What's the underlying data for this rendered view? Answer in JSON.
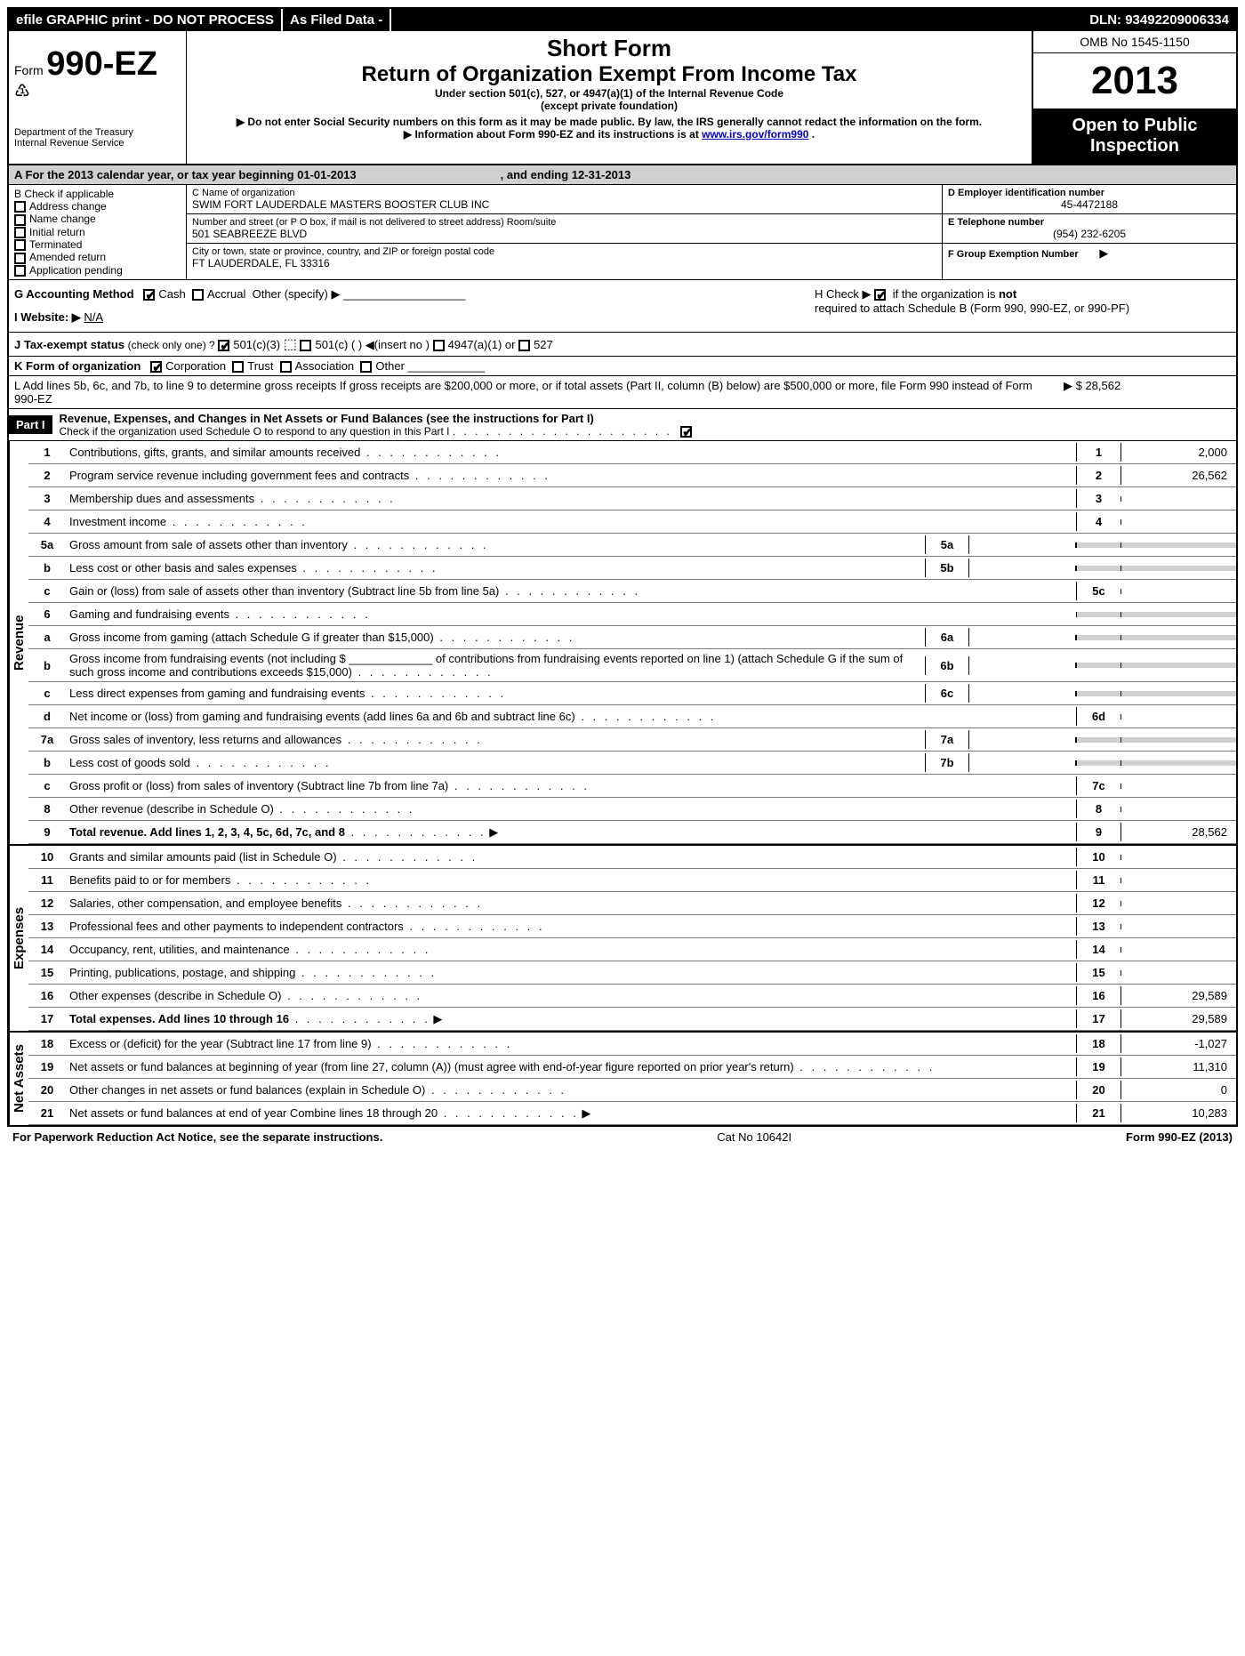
{
  "topbar": {
    "efile": "efile GRAPHIC print - DO NOT PROCESS",
    "asfiled": "As Filed Data -",
    "dln": "DLN: 93492209006334"
  },
  "header": {
    "form_prefix": "Form",
    "form_num": "990-EZ",
    "short": "Short Form",
    "title": "Return of Organization Exempt From Income Tax",
    "sub1": "Under section 501(c), 527, or 4947(a)(1) of the Internal Revenue Code",
    "sub2": "(except private foundation)",
    "warn1": "▶ Do not enter Social Security numbers on this form as it may be made public. By law, the IRS generally cannot redact the information on the form.",
    "warn2_pre": "▶  Information about Form 990-EZ and its instructions is at ",
    "warn2_link": "www.irs.gov/form990",
    "warn2_post": ".",
    "dept": "Department of the Treasury",
    "irs": "Internal Revenue Service",
    "omb": "OMB No  1545-1150",
    "year": "2013",
    "open": "Open to Public Inspection"
  },
  "A": {
    "pre": "A  For the 2013 calendar year, or tax year beginning 01-01-2013",
    "end": ", and ending 12-31-2013"
  },
  "B": {
    "title": "B  Check if applicable",
    "items": [
      "Address change",
      "Name change",
      "Initial return",
      "Terminated",
      "Amended return",
      "Application pending"
    ]
  },
  "C": {
    "label": "C Name of organization",
    "name": "SWIM FORT LAUDERDALE MASTERS BOOSTER CLUB INC",
    "addr_label": "Number and street (or P  O  box, if mail is not delivered to street address) Room/suite",
    "addr": "501 SEABREEZE BLVD",
    "city_label": "City or town, state or province, country, and ZIP or foreign postal code",
    "city": "FT LAUDERDALE, FL  33316"
  },
  "D": {
    "label": "D Employer identification number",
    "val": "45-4472188"
  },
  "E": {
    "label": "E Telephone number",
    "val": "(954) 232-6205"
  },
  "F": {
    "label": "F Group Exemption Number",
    "arrow": "▶"
  },
  "G": {
    "label": "G Accounting Method",
    "cash": "Cash",
    "accrual": "Accrual",
    "other": "Other (specify) ▶"
  },
  "H": {
    "text": "H  Check ▶",
    "rest": "if the organization is",
    "not": "not",
    "rest2": "required to attach Schedule B (Form 990, 990-EZ, or 990-PF)"
  },
  "I": {
    "label": "I Website: ▶",
    "val": "N/A"
  },
  "J": {
    "label": "J Tax-exempt status",
    "rest": "(check only one) ?",
    "c3": "501(c)(3)",
    "c": "501(c) (   ) ◀(insert no )",
    "a": "4947(a)(1) or",
    "s527": "527"
  },
  "K": {
    "label": "K Form of organization",
    "corp": "Corporation",
    "trust": "Trust",
    "assoc": "Association",
    "other": "Other"
  },
  "L": {
    "text": "L Add lines 5b, 6c, and 7b, to line 9 to determine gross receipts  If gross receipts are $200,000 or more, or if total assets (Part II, column (B) below) are $500,000 or more, file Form 990 instead of Form 990-EZ",
    "amt": "▶ $ 28,562"
  },
  "part1": {
    "hdr": "Part I",
    "title": "Revenue, Expenses, and Changes in Net Assets or Fund Balances (see the instructions for Part I)",
    "check": "Check if the organization used Schedule O to respond to any question in this Part I"
  },
  "revenue_label": "Revenue",
  "expenses_label": "Expenses",
  "netassets_label": "Net Assets",
  "lines": {
    "l1": {
      "n": "1",
      "d": "Contributions, gifts, grants, and similar amounts received",
      "box": "1",
      "v": "2,000"
    },
    "l2": {
      "n": "2",
      "d": "Program service revenue including government fees and contracts",
      "box": "2",
      "v": "26,562"
    },
    "l3": {
      "n": "3",
      "d": "Membership dues and assessments",
      "box": "3",
      "v": ""
    },
    "l4": {
      "n": "4",
      "d": "Investment income",
      "box": "4",
      "v": ""
    },
    "l5a": {
      "n": "5a",
      "d": "Gross amount from sale of assets other than inventory",
      "sub": "5a"
    },
    "l5b": {
      "n": "b",
      "d": "Less  cost or other basis and sales expenses",
      "sub": "5b"
    },
    "l5c": {
      "n": "c",
      "d": "Gain or (loss) from sale of assets other than inventory (Subtract line 5b from line 5a)",
      "box": "5c",
      "v": ""
    },
    "l6": {
      "n": "6",
      "d": "Gaming and fundraising events"
    },
    "l6a": {
      "n": "a",
      "d": "Gross income from gaming (attach Schedule G if greater than $15,000)",
      "sub": "6a"
    },
    "l6b": {
      "n": "b",
      "d": "Gross income from fundraising events (not including $ _____________ of contributions from fundraising events reported on line 1) (attach Schedule G if the sum of such gross income and contributions exceeds $15,000)",
      "sub": "6b"
    },
    "l6c": {
      "n": "c",
      "d": "Less  direct expenses from gaming and fundraising events",
      "sub": "6c"
    },
    "l6d": {
      "n": "d",
      "d": "Net income or (loss) from gaming and fundraising events (add lines 6a and 6b and subtract line 6c)",
      "box": "6d",
      "v": ""
    },
    "l7a": {
      "n": "7a",
      "d": "Gross sales of inventory, less returns and allowances",
      "sub": "7a"
    },
    "l7b": {
      "n": "b",
      "d": "Less  cost of goods sold",
      "sub": "7b"
    },
    "l7c": {
      "n": "c",
      "d": "Gross profit or (loss) from sales of inventory (Subtract line 7b from line 7a)",
      "box": "7c",
      "v": ""
    },
    "l8": {
      "n": "8",
      "d": "Other revenue (describe in Schedule O)",
      "box": "8",
      "v": ""
    },
    "l9": {
      "n": "9",
      "d": "Total revenue. Add lines 1, 2, 3, 4, 5c, 6d, 7c, and 8",
      "box": "9",
      "v": "28,562",
      "bold": true,
      "arrow": true
    },
    "l10": {
      "n": "10",
      "d": "Grants and similar amounts paid (list in Schedule O)",
      "box": "10",
      "v": ""
    },
    "l11": {
      "n": "11",
      "d": "Benefits paid to or for members",
      "box": "11",
      "v": ""
    },
    "l12": {
      "n": "12",
      "d": "Salaries, other compensation, and employee benefits",
      "box": "12",
      "v": ""
    },
    "l13": {
      "n": "13",
      "d": "Professional fees and other payments to independent contractors",
      "box": "13",
      "v": ""
    },
    "l14": {
      "n": "14",
      "d": "Occupancy, rent, utilities, and maintenance",
      "box": "14",
      "v": ""
    },
    "l15": {
      "n": "15",
      "d": "Printing, publications, postage, and shipping",
      "box": "15",
      "v": ""
    },
    "l16": {
      "n": "16",
      "d": "Other expenses (describe in Schedule O)",
      "box": "16",
      "v": "29,589"
    },
    "l17": {
      "n": "17",
      "d": "Total expenses. Add lines 10 through 16",
      "box": "17",
      "v": "29,589",
      "bold": true,
      "arrow": true
    },
    "l18": {
      "n": "18",
      "d": "Excess or (deficit) for the year (Subtract line 17 from line 9)",
      "box": "18",
      "v": "-1,027"
    },
    "l19": {
      "n": "19",
      "d": "Net assets or fund balances at beginning of year (from line 27, column (A)) (must agree with end-of-year figure reported on prior year's return)",
      "box": "19",
      "v": "11,310"
    },
    "l20": {
      "n": "20",
      "d": "Other changes in net assets or fund balances (explain in Schedule O)",
      "box": "20",
      "v": "0"
    },
    "l21": {
      "n": "21",
      "d": "Net assets or fund balances at end of year  Combine lines 18 through 20",
      "box": "21",
      "v": "10,283",
      "arrow": true
    }
  },
  "footer": {
    "left": "For Paperwork Reduction Act Notice, see the separate instructions.",
    "mid": "Cat  No  10642I",
    "right": "Form 990-EZ (2013)"
  },
  "dots": ".  .  .  .  .  .  .  .  .  .  .  .  .  .  .  ."
}
